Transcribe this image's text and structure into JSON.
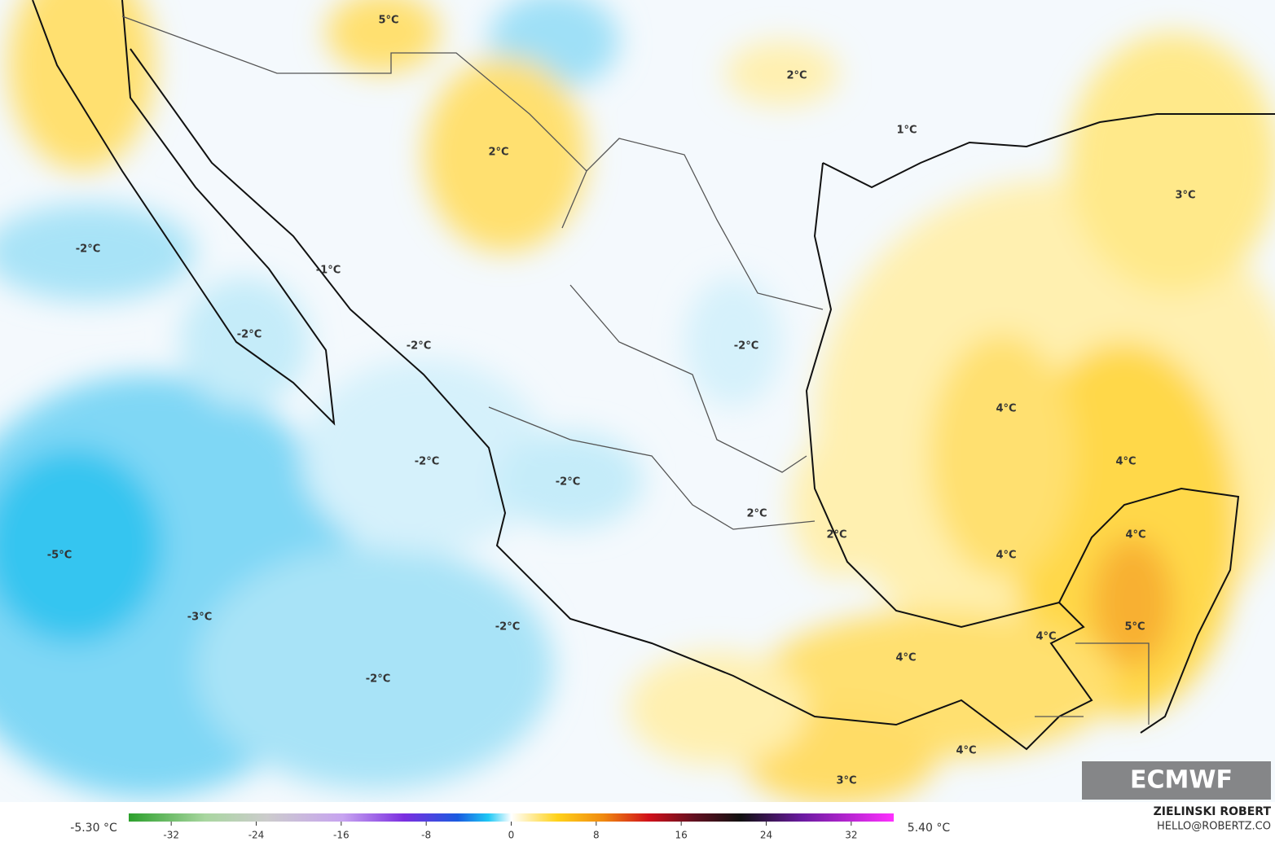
{
  "map": {
    "labels": [
      "5°C",
      "2°C",
      "1°C",
      "2°C",
      "3°C",
      "-2°C",
      "-1°C",
      "-2°C",
      "-2°C",
      "-2°C",
      "4°C",
      "-2°C",
      "4°C",
      "-2°C",
      "2°C",
      "2°C",
      "4°C",
      "-5°C",
      "4°C",
      "-3°C",
      "-2°C",
      "5°C",
      "4°C",
      "4°C",
      "-2°C",
      "4°C",
      "3°C"
    ],
    "logo": "ECMWF"
  },
  "colorbar": {
    "min_label": "-5.30 °C",
    "max_label": "5.40 °C",
    "lim": [
      -36,
      36
    ],
    "ticks": [
      -32,
      -24,
      -16,
      -8,
      0,
      8,
      16,
      24,
      32
    ]
  },
  "credits": {
    "author": "ZIELINSKI ROBERT",
    "contact": "HELLO@ROBERTZ.CO"
  }
}
